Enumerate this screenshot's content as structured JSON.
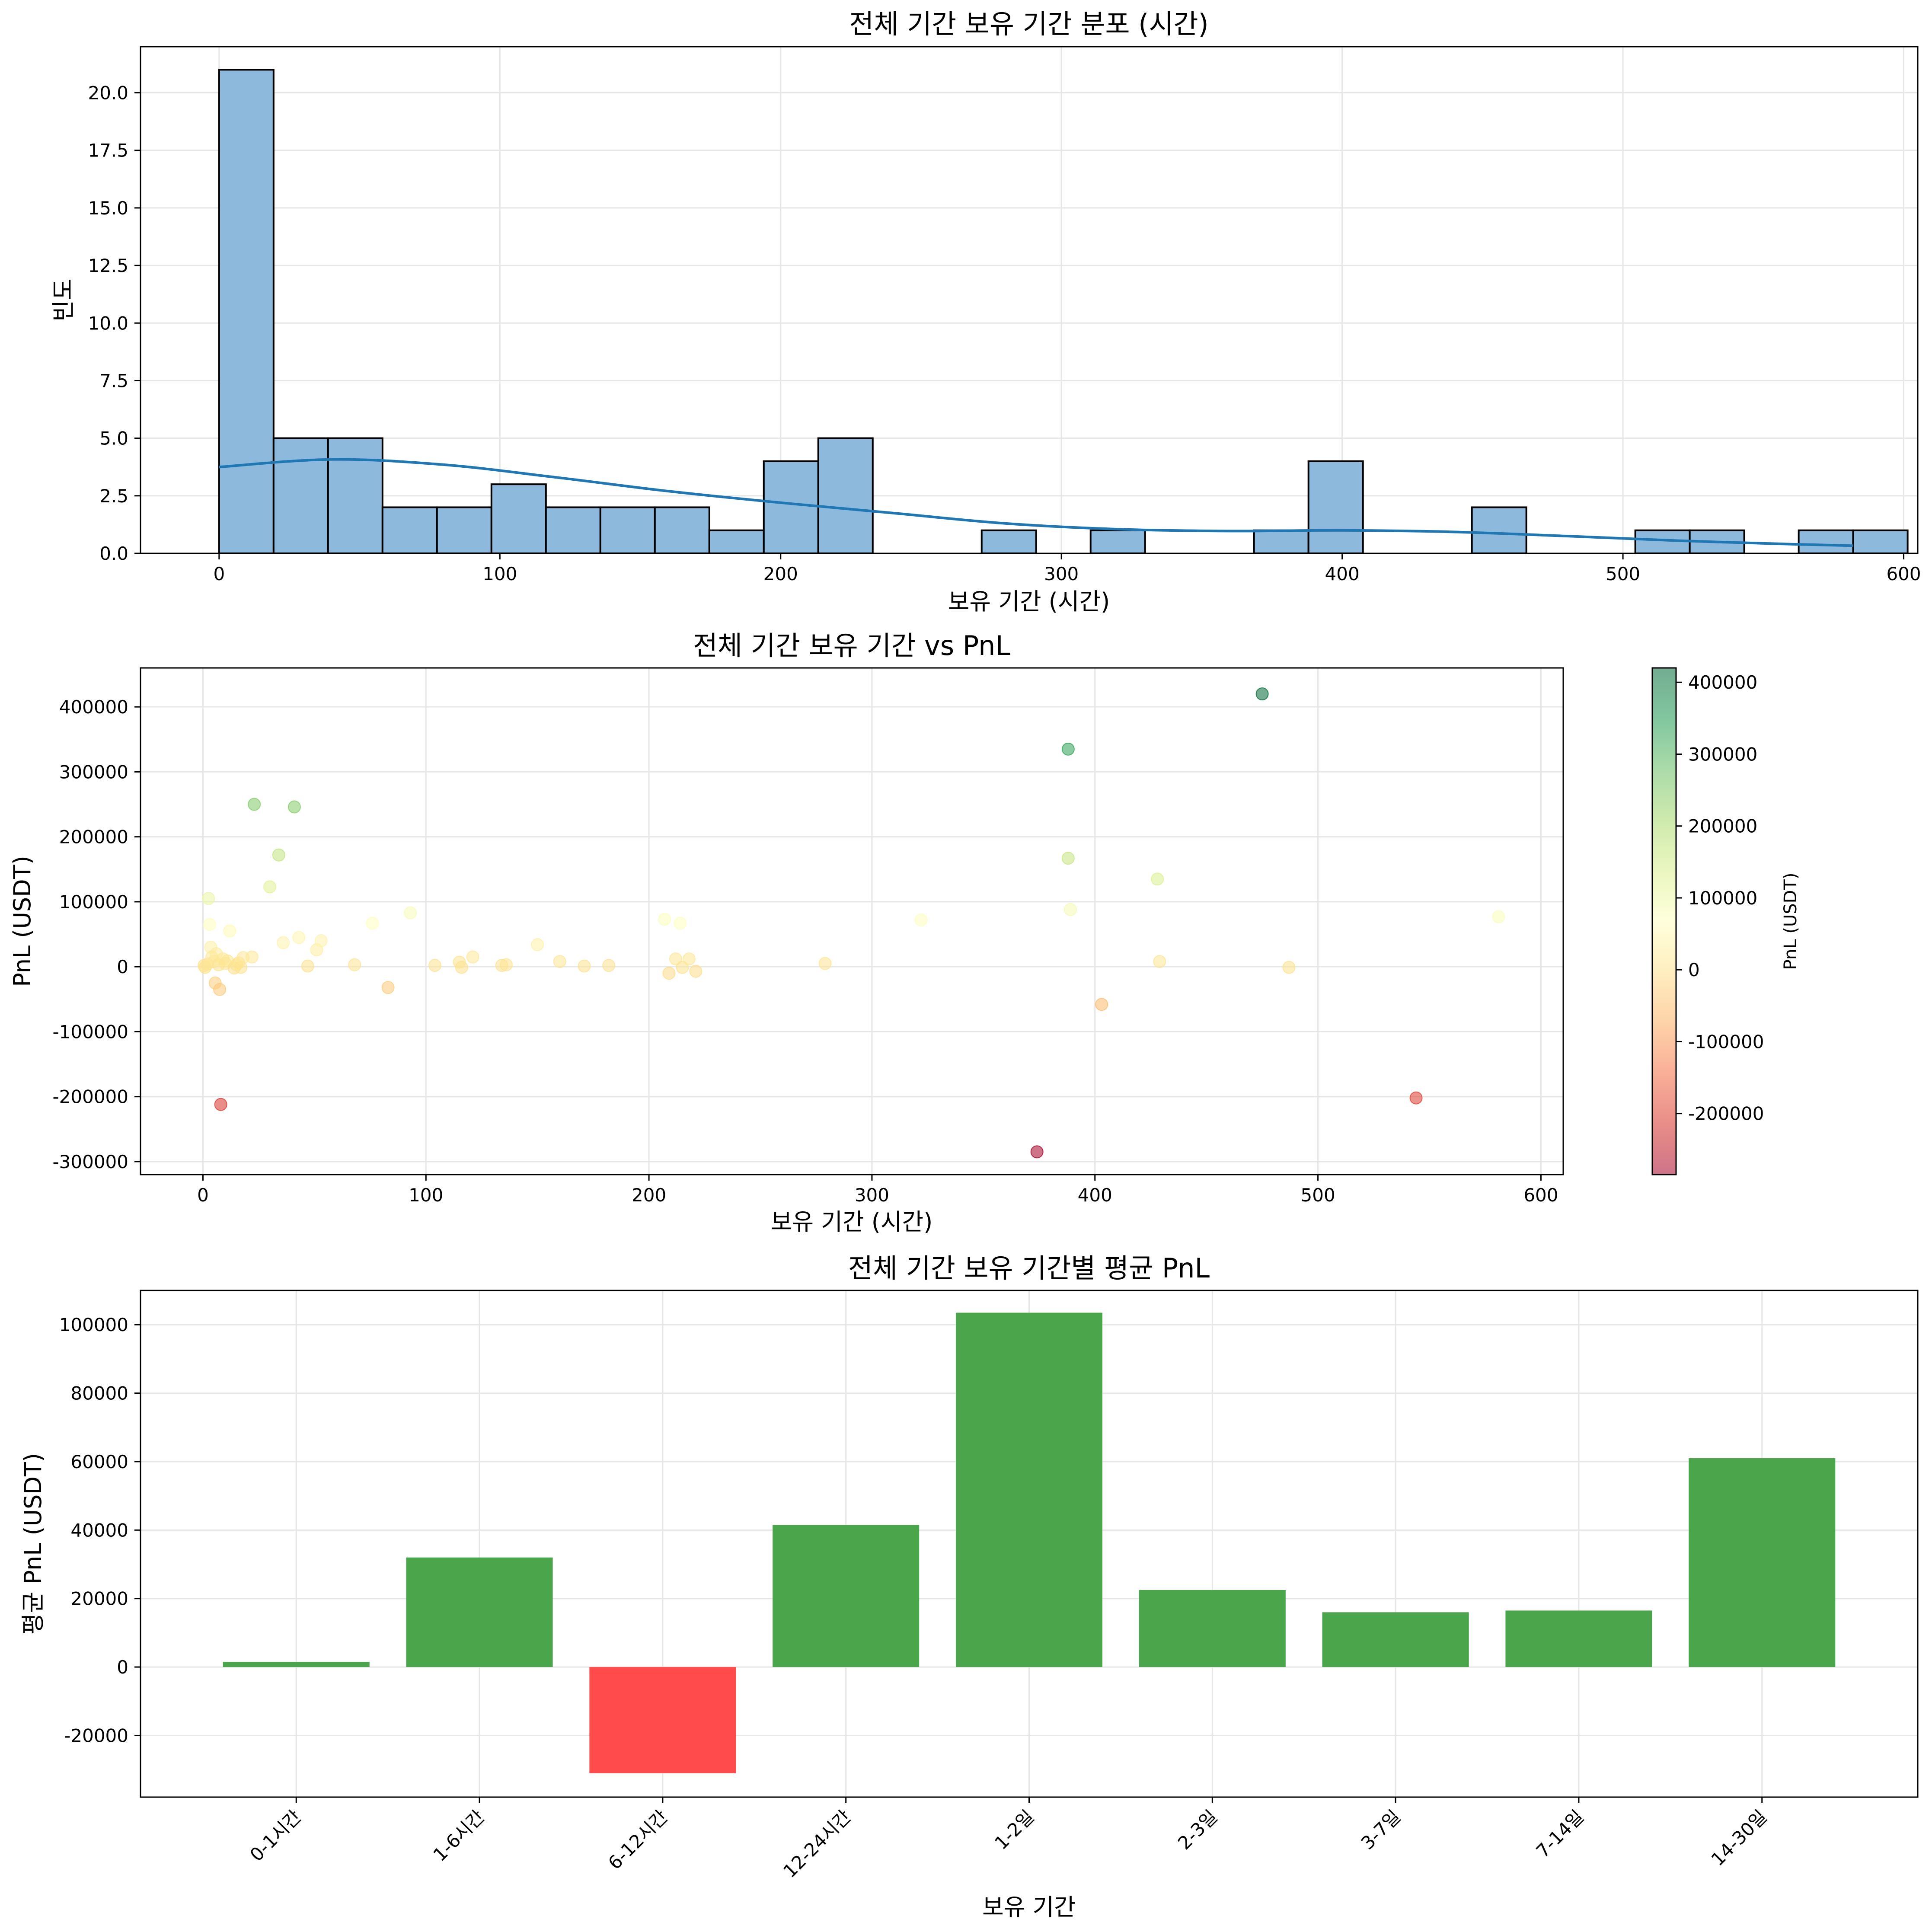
{
  "chart_data": [
    {
      "type": "histogram",
      "title": "전체 기간 보유 기간 분포 (시간)",
      "xlabel": "보유 기간 (시간)",
      "ylabel": "빈도",
      "xlim": [
        -28,
        605
      ],
      "ylim": [
        0,
        22
      ],
      "xticks": [
        0,
        100,
        200,
        300,
        400,
        500,
        600
      ],
      "yticks": [
        0,
        2.5,
        5,
        7.5,
        10,
        12.5,
        15,
        17.5,
        20
      ],
      "ytick_labels": [
        "0.0",
        "2.5",
        "5.0",
        "7.5",
        "10.0",
        "12.5",
        "15.0",
        "17.5",
        "20.0"
      ],
      "bin_start": 0,
      "bin_width": 19.4,
      "counts": [
        21,
        5,
        5,
        2,
        2,
        3,
        2,
        2,
        2,
        1,
        4,
        5,
        0,
        0,
        1,
        0,
        1,
        0,
        0,
        1,
        4,
        0,
        0,
        2,
        0,
        0,
        1,
        1,
        0,
        1,
        1
      ],
      "kde": {
        "x": [
          0,
          40,
          80,
          120,
          160,
          200,
          240,
          280,
          320,
          360,
          400,
          440,
          480,
          520,
          560,
          582
        ],
        "y": [
          3.75,
          4.08,
          3.85,
          3.3,
          2.7,
          2.2,
          1.75,
          1.3,
          1.05,
          0.97,
          1.0,
          0.93,
          0.75,
          0.55,
          0.4,
          0.33
        ]
      },
      "bar_color": "#8db9dc",
      "line_color": "#1f77b4",
      "grid": true
    },
    {
      "type": "scatter",
      "title": "전체 기간 보유 기간 vs PnL",
      "xlabel": "보유 기간 (시간)",
      "ylabel": "PnL (USDT)",
      "xlim": [
        -28,
        610
      ],
      "ylim": [
        -320000,
        460000
      ],
      "xticks": [
        0,
        100,
        200,
        300,
        400,
        500,
        600
      ],
      "yticks": [
        -300000,
        -200000,
        -100000,
        0,
        100000,
        200000,
        300000,
        400000
      ],
      "points": [
        [
          0.5,
          2000
        ],
        [
          1,
          -1000
        ],
        [
          2,
          4000
        ],
        [
          2.5,
          105000
        ],
        [
          3,
          65000
        ],
        [
          3.5,
          30000
        ],
        [
          4,
          15000
        ],
        [
          5,
          8000
        ],
        [
          5.5,
          -25000
        ],
        [
          6,
          20000
        ],
        [
          7,
          3000
        ],
        [
          7.5,
          -35000
        ],
        [
          8,
          -212000
        ],
        [
          9,
          12000
        ],
        [
          10,
          5000
        ],
        [
          11,
          9000
        ],
        [
          12,
          55000
        ],
        [
          14,
          -2000
        ],
        [
          15,
          3000
        ],
        [
          16,
          6000
        ],
        [
          17,
          -1000
        ],
        [
          18,
          14000
        ],
        [
          22,
          15000
        ],
        [
          23,
          250000
        ],
        [
          30,
          123000
        ],
        [
          34,
          172000
        ],
        [
          36,
          37000
        ],
        [
          41,
          246000
        ],
        [
          43,
          45000
        ],
        [
          47,
          1000
        ],
        [
          51,
          26000
        ],
        [
          53,
          40000
        ],
        [
          68,
          3000
        ],
        [
          76,
          67000
        ],
        [
          83,
          -32000
        ],
        [
          93,
          83000
        ],
        [
          104,
          2000
        ],
        [
          115,
          7000
        ],
        [
          116,
          -1000
        ],
        [
          121,
          15000
        ],
        [
          134,
          2000
        ],
        [
          136,
          3000
        ],
        [
          150,
          34000
        ],
        [
          160,
          8000
        ],
        [
          171,
          1000
        ],
        [
          182,
          2000
        ],
        [
          207,
          73000
        ],
        [
          209,
          -10000
        ],
        [
          212,
          12000
        ],
        [
          214,
          67000
        ],
        [
          215,
          -1000
        ],
        [
          218,
          12000
        ],
        [
          221,
          -7000
        ],
        [
          279,
          5000
        ],
        [
          322,
          72000
        ],
        [
          374,
          -285000
        ],
        [
          388,
          335000
        ],
        [
          388,
          167000
        ],
        [
          389,
          88000
        ],
        [
          403,
          -58000
        ],
        [
          428,
          135000
        ],
        [
          429,
          8000
        ],
        [
          475,
          420000
        ],
        [
          487,
          -1000
        ],
        [
          544,
          -202000
        ],
        [
          581,
          77000
        ]
      ],
      "colormap": "RdYlGn",
      "colorbar": {
        "label": "PnL (USDT)",
        "range": [
          -285000,
          420000
        ],
        "ticks": [
          -200000,
          -100000,
          0,
          100000,
          200000,
          300000,
          400000
        ]
      },
      "grid": true
    },
    {
      "type": "bar",
      "title": "전체 기간 보유 기간별 평균 PnL",
      "xlabel": "보유 기간",
      "ylabel": "평균 PnL (USDT)",
      "categories": [
        "0-1시간",
        "1-6시간",
        "6-12시간",
        "12-24시간",
        "1-2일",
        "2-3일",
        "3-7일",
        "7-14일",
        "14-30일"
      ],
      "values": [
        1500,
        32000,
        -31000,
        41500,
        103500,
        22500,
        16000,
        16500,
        61000
      ],
      "ylim": [
        -38000,
        110000
      ],
      "yticks": [
        -20000,
        0,
        20000,
        40000,
        60000,
        80000,
        100000
      ],
      "positive_color": "#4ba54b",
      "negative_color": "#ff4b4b",
      "grid": true
    }
  ]
}
